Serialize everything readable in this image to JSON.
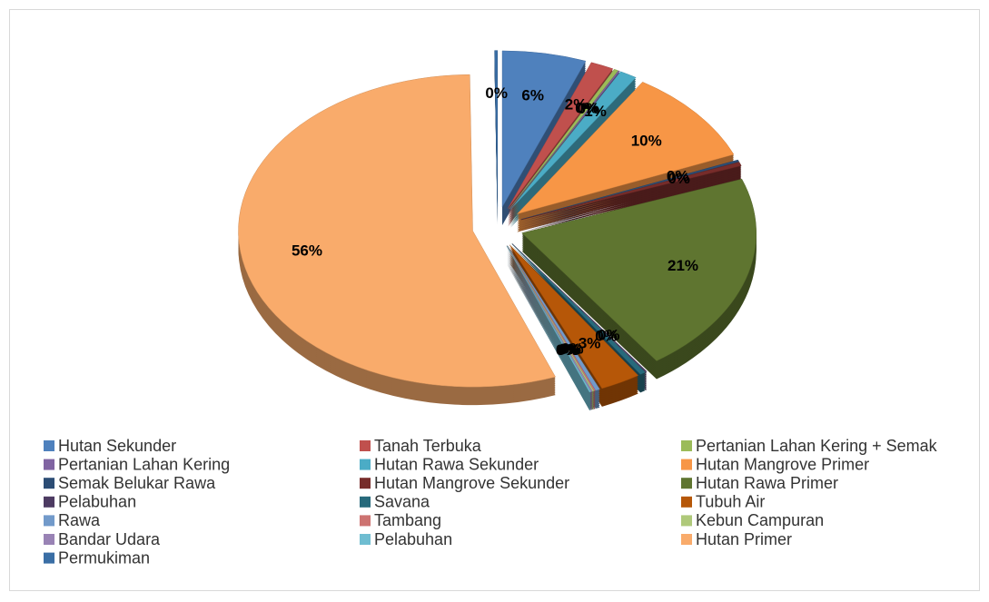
{
  "chart_data": {
    "type": "pie",
    "categories": [
      "Hutan Sekunder",
      "Tanah Terbuka",
      "Pertanian Lahan Kering + Semak",
      "Pertanian Lahan Kering",
      "Hutan Rawa Sekunder",
      "Hutan Mangrove Primer",
      "Semak Belukar Rawa",
      "Hutan Mangrove Sekunder",
      "Hutan Rawa Primer",
      "Pelabuhan",
      "Savana",
      "Tubuh Air",
      "Rawa",
      "Tambang",
      "Kebun Campuran",
      "Bandar Udara",
      "Pelabuhan",
      "Hutan Primer",
      "Permukiman"
    ],
    "values": [
      5.8,
      1.6,
      0.3,
      0.1,
      1.2,
      9.8,
      0.2,
      0.4,
      20.9,
      0.1,
      0.4,
      2.8,
      0.3,
      0.1,
      0.1,
      0.1,
      0.1,
      55.6,
      0.2
    ],
    "value_labels": [
      "6%",
      "2%",
      "0%",
      "0%",
      "1%",
      "10%",
      "0%",
      "0%",
      "21%",
      "0%",
      "0%",
      "3%",
      "0%",
      "0%",
      "0%",
      "0%",
      "0%",
      "56%",
      "0%"
    ],
    "colors": [
      "#4f81bd",
      "#c0504d",
      "#9bbb59",
      "#8064a2",
      "#4bacc6",
      "#f79646",
      "#2c4d75",
      "#772c2a",
      "#5f7530",
      "#4d3b62",
      "#276a7c",
      "#b65708",
      "#729aca",
      "#cd7371",
      "#afc97a",
      "#9983b5",
      "#6fbdd1",
      "#f9ab6b",
      "#3a6ea5"
    ],
    "legend": "bottom"
  }
}
